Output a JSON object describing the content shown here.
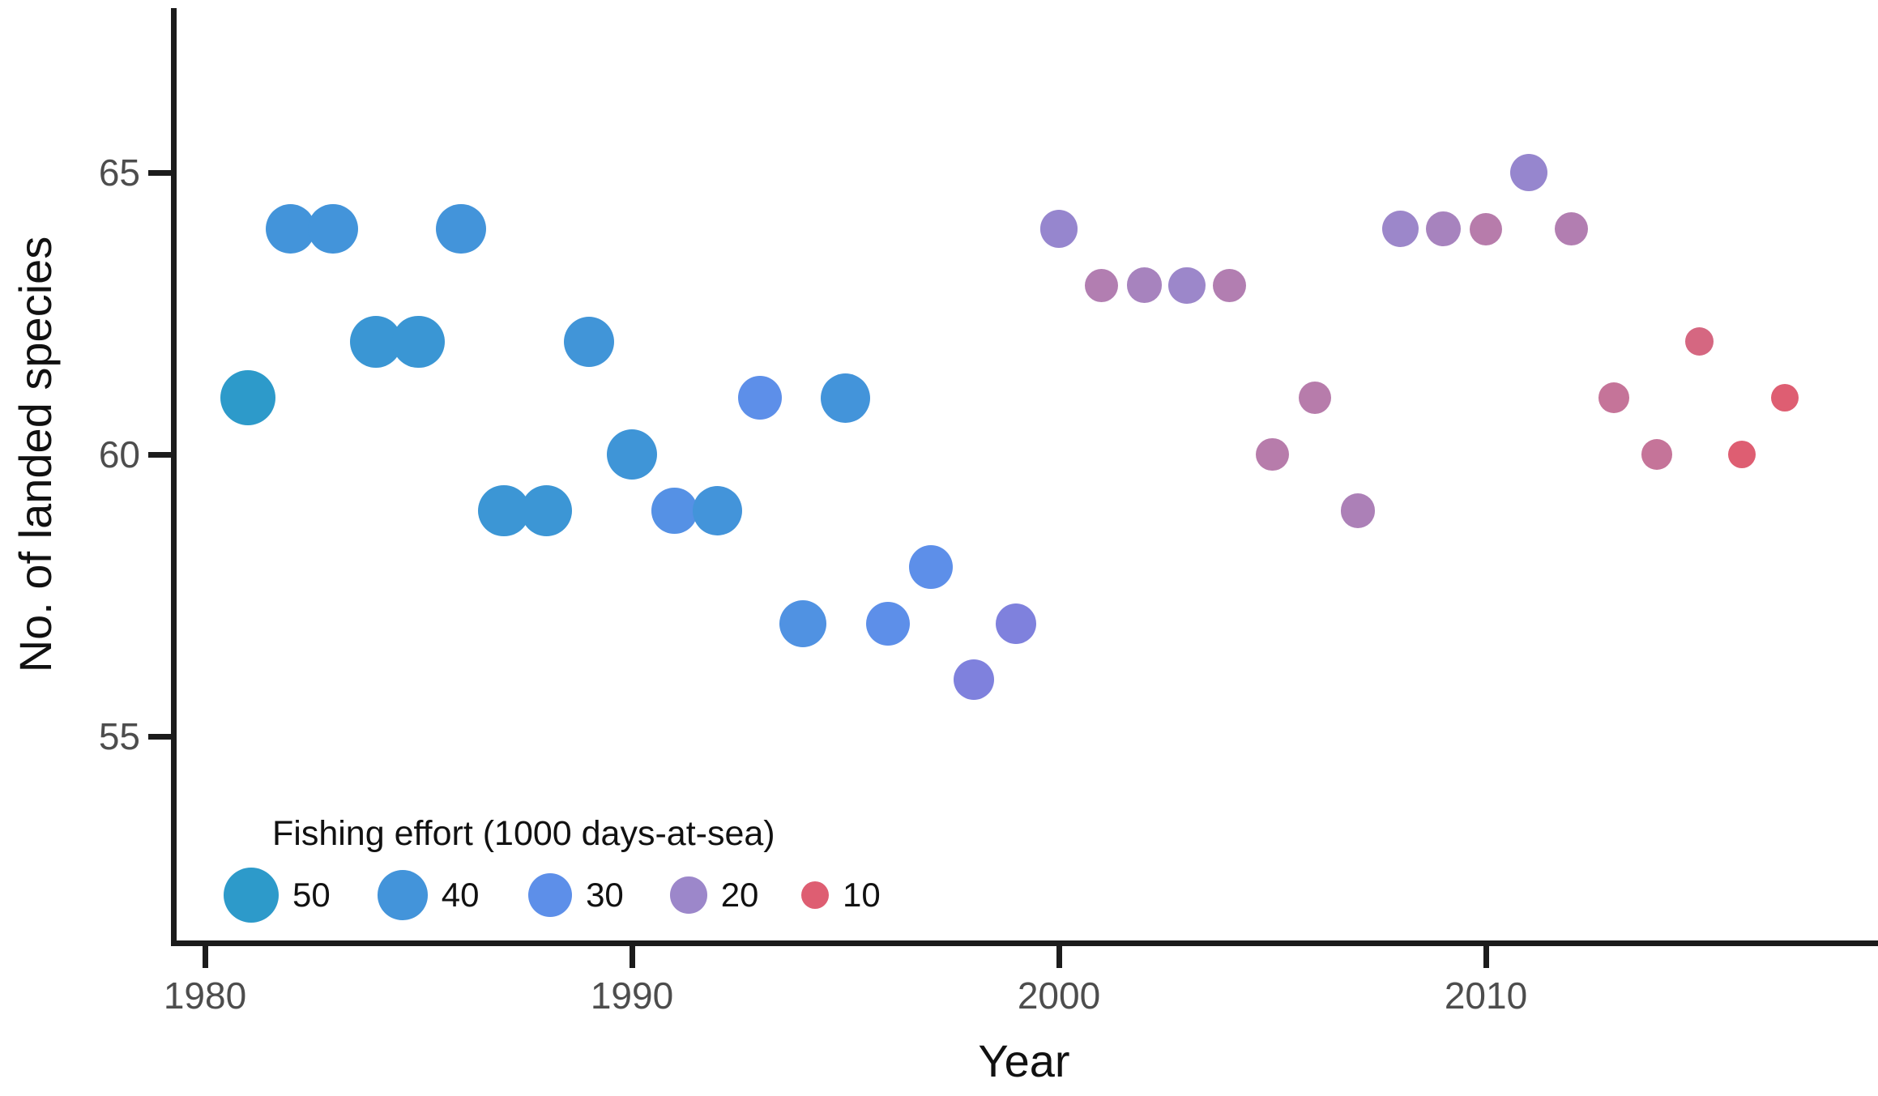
{
  "figure": {
    "background": "#ffffff",
    "axis_color": "#1c1c1c",
    "tick_label_color": "#4d4d4d",
    "text_color": "#111111"
  },
  "chart_data": {
    "type": "scatter",
    "title": "",
    "xlabel": "Year",
    "ylabel": "No. of landed species",
    "x_ticks": [
      1980,
      1990,
      2000,
      2010
    ],
    "y_ticks": [
      65,
      60,
      55
    ],
    "x_range": [
      1979,
      2019
    ],
    "y_range": [
      51.5,
      68
    ],
    "grid": "off",
    "legend": {
      "title": "Fishing effort (1000 days-at-sea)",
      "position": "inside bottom-left",
      "values": [
        50,
        40,
        30,
        20,
        10
      ],
      "encoding": "dot size and color both encode fishing effort (1000 days-at-sea)"
    },
    "points": [
      {
        "year": 1981,
        "species": 61,
        "effort": 50
      },
      {
        "year": 1982,
        "species": 64,
        "effort": 40
      },
      {
        "year": 1983,
        "species": 64,
        "effort": 40
      },
      {
        "year": 1984,
        "species": 62,
        "effort": 44
      },
      {
        "year": 1985,
        "species": 62,
        "effort": 44
      },
      {
        "year": 1986,
        "species": 64,
        "effort": 40
      },
      {
        "year": 1987,
        "species": 59,
        "effort": 43
      },
      {
        "year": 1988,
        "species": 59,
        "effort": 43
      },
      {
        "year": 1989,
        "species": 62,
        "effort": 41
      },
      {
        "year": 1990,
        "species": 60,
        "effort": 42
      },
      {
        "year": 1991,
        "species": 59,
        "effort": 33
      },
      {
        "year": 1992,
        "species": 59,
        "effort": 40
      },
      {
        "year": 1993,
        "species": 61,
        "effort": 30
      },
      {
        "year": 1994,
        "species": 57,
        "effort": 35
      },
      {
        "year": 1995,
        "species": 61,
        "effort": 40
      },
      {
        "year": 1996,
        "species": 57,
        "effort": 30
      },
      {
        "year": 1997,
        "species": 58,
        "effort": 30
      },
      {
        "year": 1998,
        "species": 56,
        "effort": 25
      },
      {
        "year": 1999,
        "species": 57,
        "effort": 25
      },
      {
        "year": 2000,
        "species": 64,
        "effort": 21
      },
      {
        "year": 2001,
        "species": 63,
        "effort": 16
      },
      {
        "year": 2002,
        "species": 63,
        "effort": 18
      },
      {
        "year": 2003,
        "species": 63,
        "effort": 20
      },
      {
        "year": 2004,
        "species": 63,
        "effort": 16
      },
      {
        "year": 2005,
        "species": 60,
        "effort": 15
      },
      {
        "year": 2006,
        "species": 61,
        "effort": 15
      },
      {
        "year": 2007,
        "species": 59,
        "effort": 17
      },
      {
        "year": 2008,
        "species": 64,
        "effort": 20
      },
      {
        "year": 2009,
        "species": 64,
        "effort": 18
      },
      {
        "year": 2010,
        "species": 64,
        "effort": 15
      },
      {
        "year": 2011,
        "species": 65,
        "effort": 21
      },
      {
        "year": 2012,
        "species": 64,
        "effort": 16
      },
      {
        "year": 2013,
        "species": 61,
        "effort": 13
      },
      {
        "year": 2014,
        "species": 60,
        "effort": 13
      },
      {
        "year": 2015,
        "species": 62,
        "effort": 11
      },
      {
        "year": 2016,
        "species": 60,
        "effort": 10
      },
      {
        "year": 2017,
        "species": 61,
        "effort": 10
      }
    ]
  },
  "palette": {
    "effort_color_stops": [
      [
        10,
        "#de5e72"
      ],
      [
        12,
        "#cc7090"
      ],
      [
        15,
        "#b77cab"
      ],
      [
        20,
        "#9c87ca"
      ],
      [
        25,
        "#7f81dd"
      ],
      [
        30,
        "#5d8fe9"
      ],
      [
        40,
        "#4394da"
      ],
      [
        50,
        "#2d9aca"
      ]
    ]
  }
}
